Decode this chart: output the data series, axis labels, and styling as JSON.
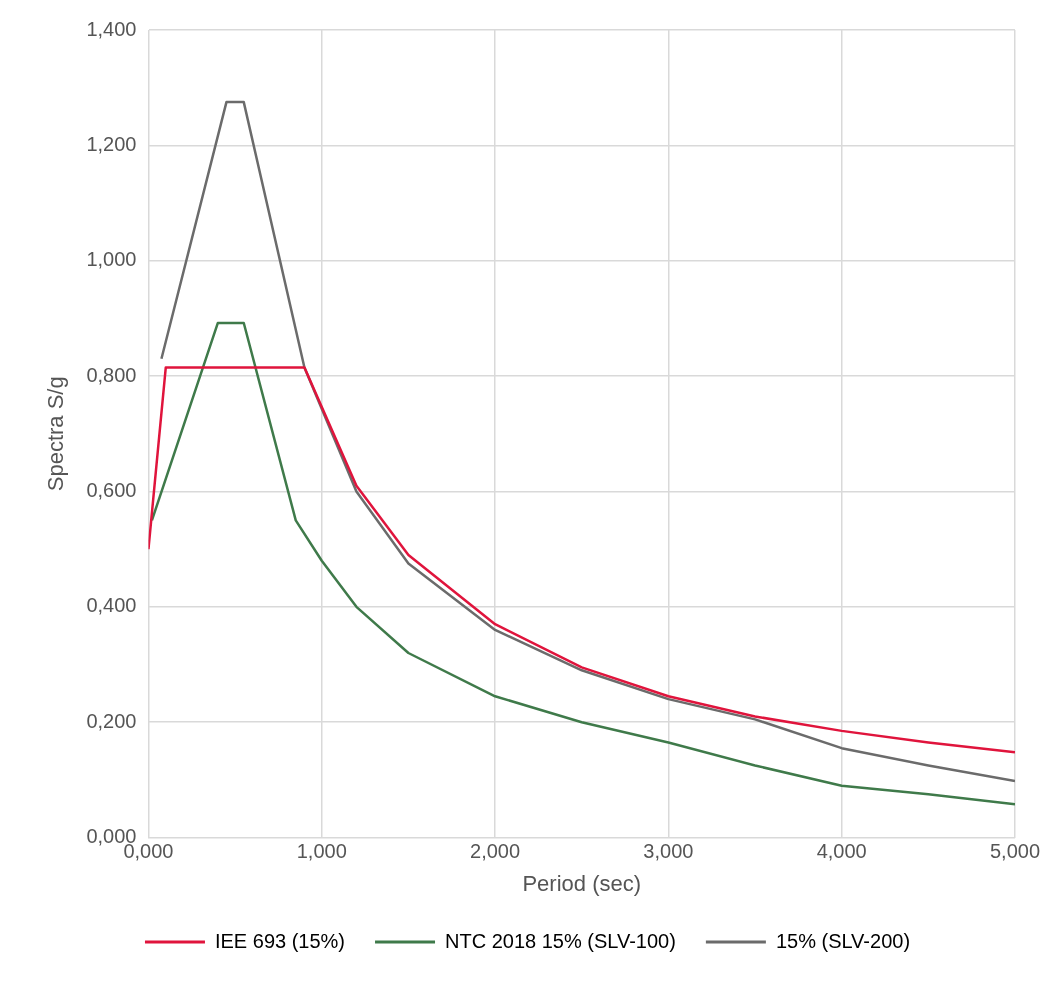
{
  "chart_data": {
    "type": "line",
    "xlabel": "Period (sec)",
    "ylabel": "Spectra S/g",
    "xlim": [
      0,
      5
    ],
    "ylim": [
      0,
      1.4
    ],
    "xticks": [
      {
        "value": 0,
        "label": "0,000"
      },
      {
        "value": 1,
        "label": "1,000"
      },
      {
        "value": 2,
        "label": "2,000"
      },
      {
        "value": 3,
        "label": "3,000"
      },
      {
        "value": 4,
        "label": "4,000"
      },
      {
        "value": 5,
        "label": "5,000"
      }
    ],
    "yticks": [
      {
        "value": 0,
        "label": "0,000"
      },
      {
        "value": 0.2,
        "label": "0,200"
      },
      {
        "value": 0.4,
        "label": "0,400"
      },
      {
        "value": 0.6,
        "label": "0,600"
      },
      {
        "value": 0.8,
        "label": "0,800"
      },
      {
        "value": 1,
        "label": "1,000"
      },
      {
        "value": 1.2,
        "label": "1,200"
      },
      {
        "value": 1.4,
        "label": "1,400"
      }
    ],
    "grid": true,
    "legend": "bottom",
    "marker": "none",
    "line_style": "solid",
    "series": [
      {
        "name": "IEE 693 (15%)",
        "color": "#e0143c",
        "x": [
          0,
          0.1,
          0.9,
          1.2,
          1.5,
          2,
          2.5,
          3,
          3.5,
          4,
          4.5,
          5
        ],
        "values": [
          0.5,
          0.815,
          0.815,
          0.61,
          0.49,
          0.37,
          0.295,
          0.245,
          0.21,
          0.185,
          0.165,
          0.148
        ]
      },
      {
        "name": "NTC 2018 15% (SLV-100)",
        "color": "#3f7a4a",
        "x": [
          0.02,
          0.4,
          0.55,
          0.85,
          1,
          1.2,
          1.5,
          2,
          2.5,
          3,
          3.5,
          4,
          4.5,
          5
        ],
        "values": [
          0.55,
          0.892,
          0.892,
          0.55,
          0.48,
          0.4,
          0.32,
          0.245,
          0.2,
          0.165,
          0.125,
          0.09,
          0.075,
          0.058
        ]
      },
      {
        "name": "15% (SLV-200)",
        "color": "#6b6b6b",
        "x": [
          0.075,
          0.45,
          0.55,
          0.9,
          1.2,
          1.5,
          2,
          2.5,
          3,
          3.5,
          4,
          4.5,
          5
        ],
        "values": [
          0.83,
          1.275,
          1.275,
          0.815,
          0.6,
          0.475,
          0.36,
          0.29,
          0.24,
          0.205,
          0.155,
          0.125,
          0.098
        ]
      }
    ]
  }
}
